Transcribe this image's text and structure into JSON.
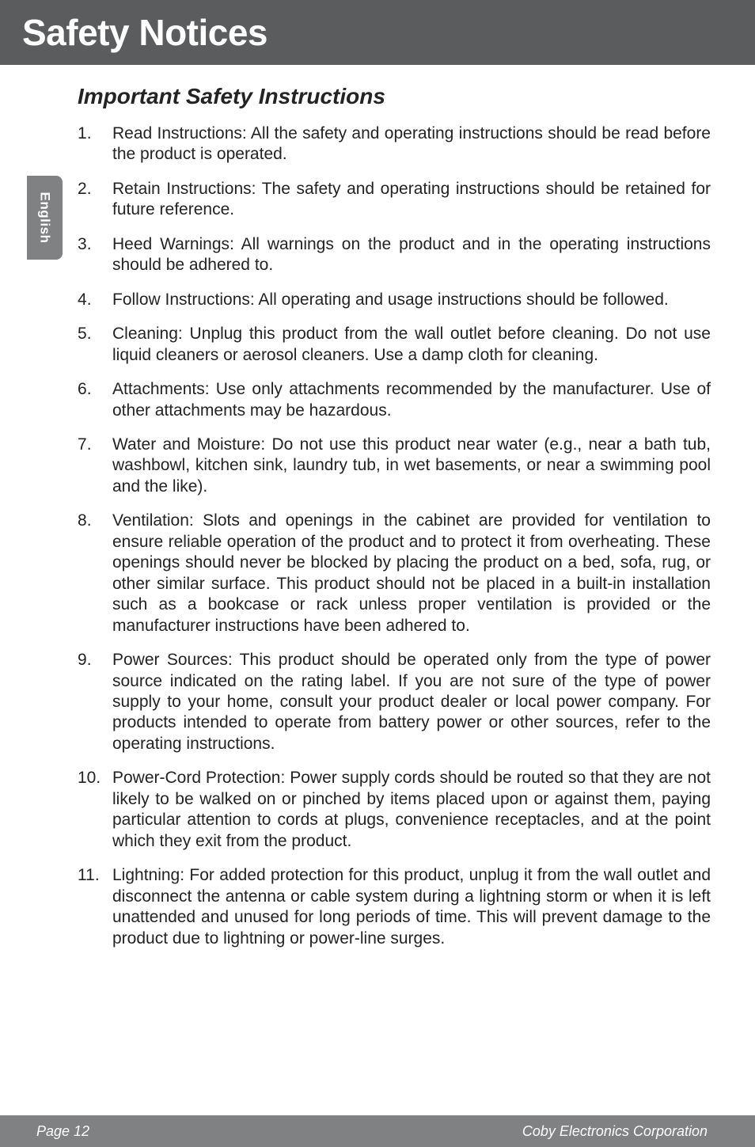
{
  "colors": {
    "banner_bg": "#5b5c5e",
    "sidebar_bg": "#808183",
    "footer_bg": "#808183",
    "text": "#232323",
    "header_text": "#ffffff"
  },
  "typography": {
    "banner_fontsize": 46,
    "subtitle_fontsize": 28,
    "body_fontsize": 21,
    "footer_fontsize": 18,
    "tab_fontsize": 17
  },
  "banner_title": "Safety Notices",
  "subtitle": "Important Safety Instructions",
  "side_tab": "English",
  "items": [
    "Read Instructions: All the safety and operating instructions should be read before the product is operated.",
    "Retain Instructions: The safety and operating instructions should be retained for future reference.",
    "Heed Warnings: All warnings on the product and in the operating instructions should be adhered to.",
    "Follow Instructions: All operating and usage instructions should be followed.",
    "Cleaning: Unplug this product from the wall outlet before cleaning. Do not use liquid cleaners or aerosol cleaners. Use a damp cloth for cleaning.",
    "Attachments: Use only attachments recommended by the manufacturer. Use of other attachments may be hazardous.",
    "Water and Moisture: Do not use this product near water (e.g., near a bath tub, washbowl, kitchen sink, laundry tub, in wet basements, or near a swimming pool and the like).",
    "Ventilation: Slots and openings in the cabinet are provided for ventilation to ensure reliable operation of the product and to protect it from overheating. These openings should never be blocked by placing the product on a bed, sofa, rug, or other similar surface. This product should not be placed in a built-in installation such as a bookcase or rack unless proper ventilation is provided or the manufacturer instructions have been adhered to.",
    "Power Sources: This product should be operated only from the type of power source indicated on the rating label. If you are not sure of the type of power supply to your home, consult your product dealer or local power company. For products intended to operate from battery power or other sources, refer to the operating instructions.",
    "Power-Cord Protection:  Power supply cords should be routed so that they are not likely to be walked on or pinched by items placed upon or against them, paying particular attention to cords at plugs, convenience receptacles, and at the point which they exit from the product.",
    "Lightning: For added protection for this product, unplug it from the wall outlet and disconnect the antenna or cable system during a lightning storm or when it is left unattended and unused for long periods of time. This will prevent damage to the product due to lightning or power-line surges."
  ],
  "footer": {
    "page": "Page 12",
    "corp": "Coby Electronics Corporation"
  }
}
